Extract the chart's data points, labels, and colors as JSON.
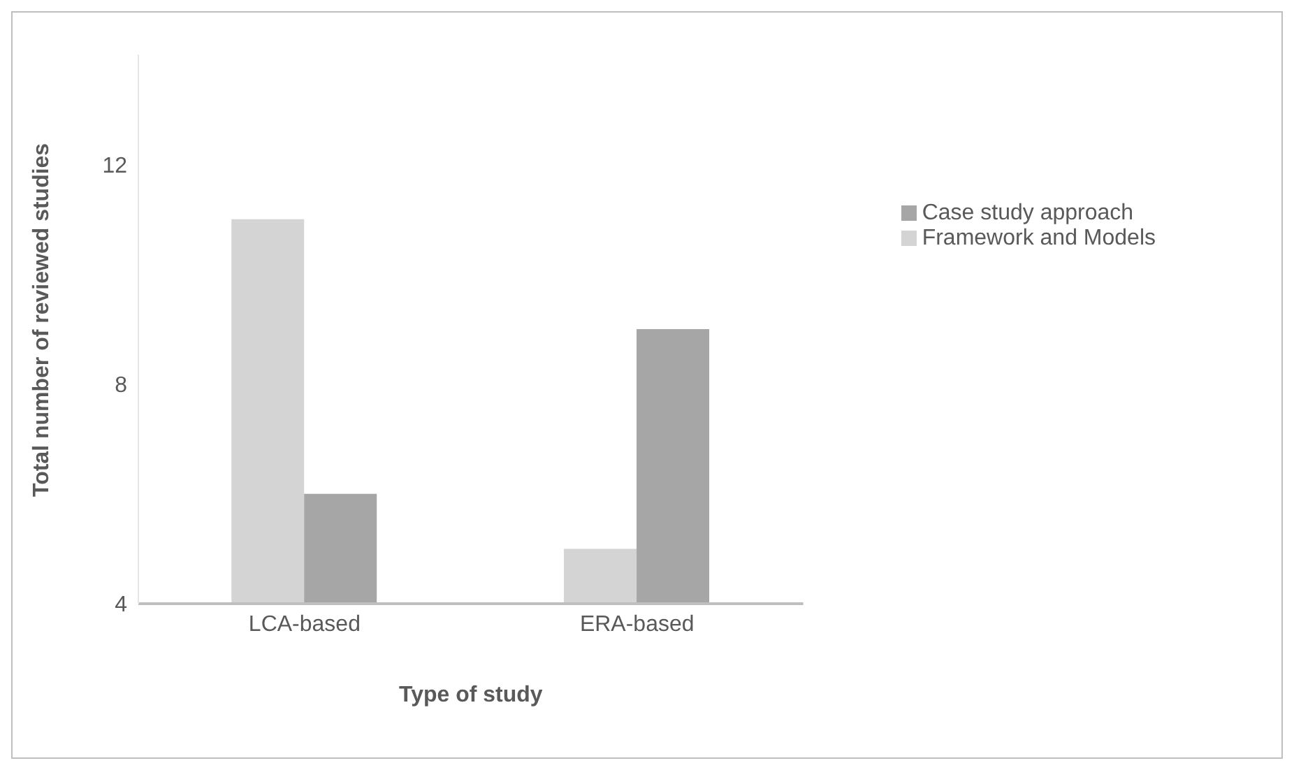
{
  "chart_data": {
    "type": "bar",
    "xlabel": "Type of study",
    "ylabel": "Total number of reviewed studies",
    "categories": [
      "LCA-based",
      "ERA-based"
    ],
    "series": [
      {
        "name": "Framework and Models",
        "color": "#d4d4d4",
        "values": [
          11,
          5
        ]
      },
      {
        "name": "Case study approach",
        "color": "#a6a6a6",
        "values": [
          6,
          9
        ]
      }
    ],
    "ylim": [
      4,
      14
    ],
    "yticks": [
      4,
      8,
      12
    ],
    "grid": false,
    "legend": "top right"
  }
}
